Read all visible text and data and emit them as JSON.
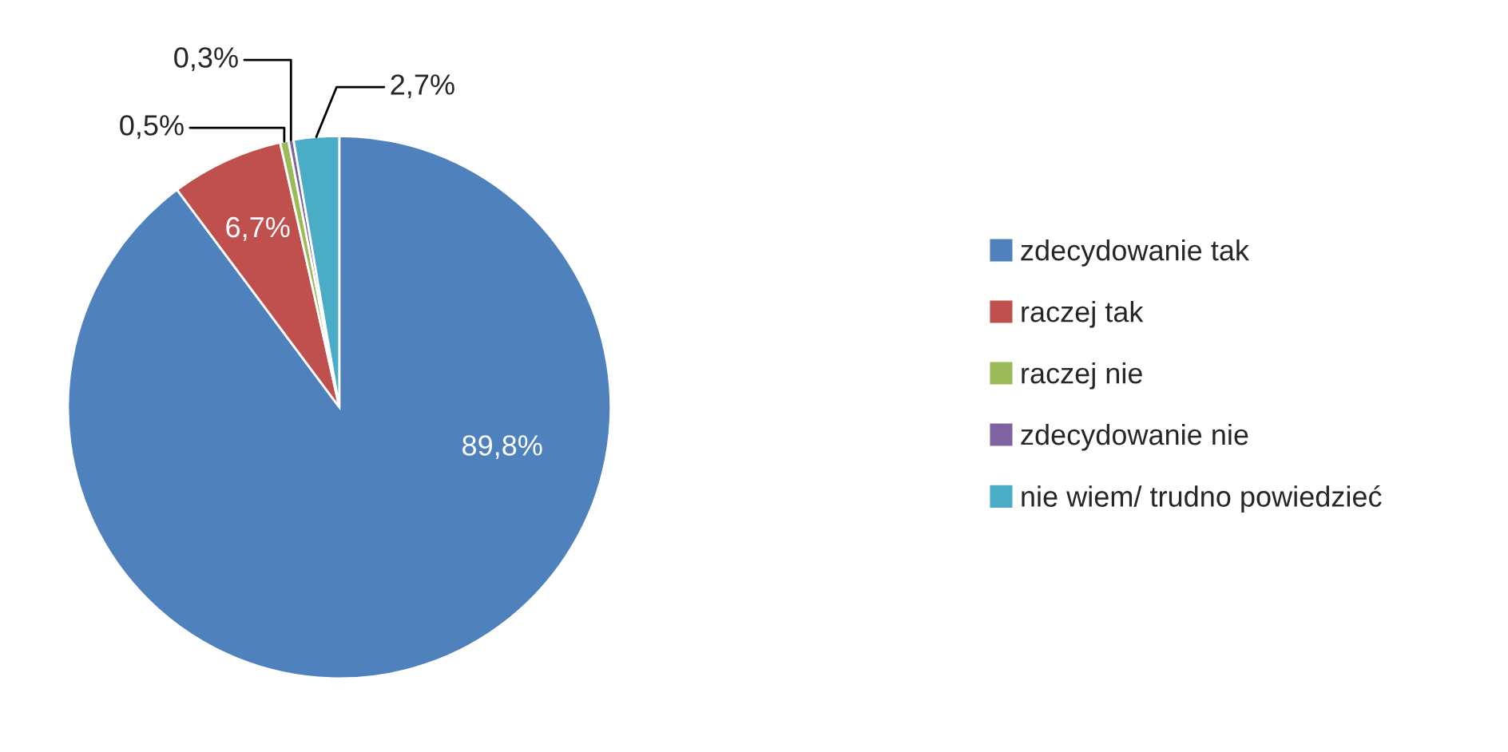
{
  "chart_data": {
    "type": "pie",
    "categories": [
      "zdecydowanie tak",
      "raczej tak",
      "raczej nie",
      "zdecydowanie nie",
      "nie wiem/ trudno powiedzieć"
    ],
    "values": [
      89.8,
      6.7,
      0.5,
      0.3,
      2.7
    ],
    "value_labels": [
      "89,8%",
      "6,7%",
      "0,5%",
      "0,3%",
      "2,7%"
    ],
    "colors": [
      "#4f81bd",
      "#c0504d",
      "#9bbb59",
      "#8064a2",
      "#4bacc6"
    ],
    "legend": "right"
  }
}
